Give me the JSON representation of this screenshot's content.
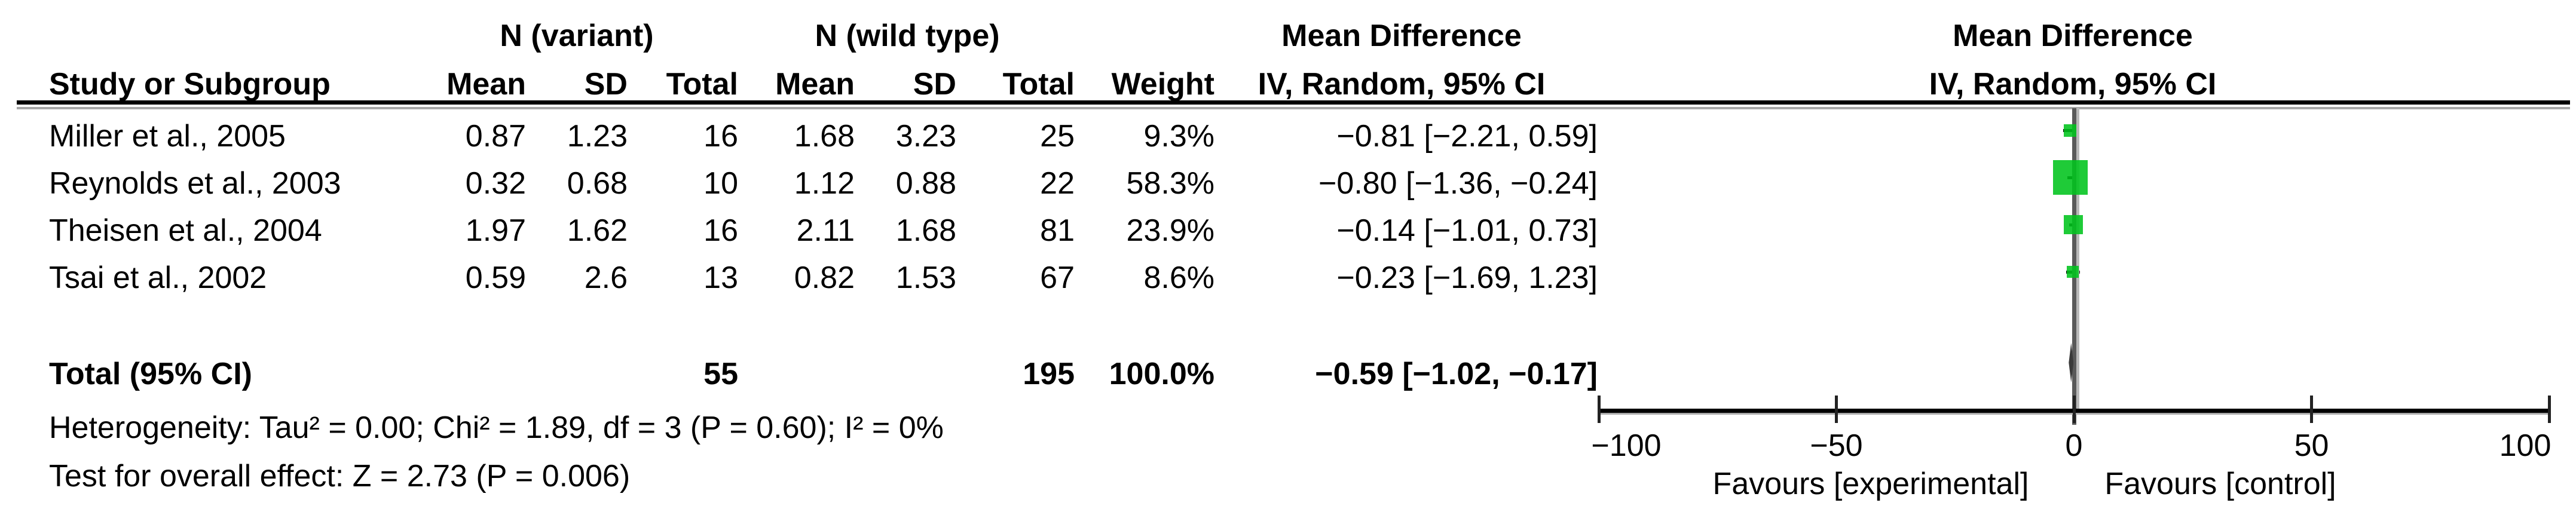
{
  "table": {
    "col_headers_top": {
      "n_variant": "N (variant)",
      "n_wild_type": "N (wild type)",
      "mean_difference_table": "Mean Difference",
      "mean_difference_plot": "Mean Difference"
    },
    "col_headers_sub": {
      "study": "Study or Subgroup",
      "mean_v": "Mean",
      "sd_v": "SD",
      "total_v": "Total",
      "mean_w": "Mean",
      "sd_w": "SD",
      "total_w": "Total",
      "weight": "Weight",
      "ci_table": "IV, Random, 95% CI",
      "ci_plot": "IV, Random, 95% CI"
    },
    "rows": [
      {
        "study": "Miller et al., 2005",
        "mean_v": "0.87",
        "sd_v": "1.23",
        "total_v": "16",
        "mean_w": "1.68",
        "sd_w": "3.23",
        "total_w": "25",
        "weight": "9.3%",
        "ci": "−0.81 [−2.21, 0.59]"
      },
      {
        "study": "Reynolds et al., 2003",
        "mean_v": "0.32",
        "sd_v": "0.68",
        "total_v": "10",
        "mean_w": "1.12",
        "sd_w": "0.88",
        "total_w": "22",
        "weight": "58.3%",
        "ci": "−0.80 [−1.36, −0.24]"
      },
      {
        "study": "Theisen et al., 2004",
        "mean_v": "1.97",
        "sd_v": "1.62",
        "total_v": "16",
        "mean_w": "2.11",
        "sd_w": "1.68",
        "total_w": "81",
        "weight": "23.9%",
        "ci": "−0.14 [−1.01, 0.73]"
      },
      {
        "study": "Tsai et al., 2002",
        "mean_v": "0.59",
        "sd_v": "2.6",
        "total_v": "13",
        "mean_w": "0.82",
        "sd_w": "1.53",
        "total_w": "67",
        "weight": "8.6%",
        "ci": "−0.23 [−1.69, 1.23]"
      }
    ],
    "total_row": {
      "label": "Total (95% CI)",
      "total_v": "55",
      "total_w": "195",
      "weight": "100.0%",
      "ci": "−0.59 [−1.02, −0.17]"
    },
    "footer": {
      "heterogeneity": "Heterogeneity: Tau² = 0.00; Chi² = 1.89, df = 3 (P = 0.60); I² = 0%",
      "overall_effect": "Test for overall effect: Z = 2.73 (P = 0.006)"
    }
  },
  "chart_data": {
    "type": "scatter",
    "subtype": "forest-plot-mean-difference",
    "title": "Mean Difference",
    "method_label": "IV, Random, 95% CI",
    "x_axis": {
      "min": -100,
      "max": 100,
      "ticks": [
        -100,
        -50,
        0,
        50,
        100
      ],
      "tick_labels": [
        "−100",
        "−50",
        "0",
        "50",
        "100"
      ],
      "zero_reference_line": 0
    },
    "axis_note_left": "Favours [experimental]",
    "axis_note_right": "Favours [control]",
    "studies": [
      {
        "name": "Miller et al., 2005",
        "mean_difference": -0.81,
        "ci_lower": -2.21,
        "ci_upper": 0.59,
        "weight_pct": 9.3
      },
      {
        "name": "Reynolds et al., 2003",
        "mean_difference": -0.8,
        "ci_lower": -1.36,
        "ci_upper": -0.24,
        "weight_pct": 58.3
      },
      {
        "name": "Theisen et al., 2004",
        "mean_difference": -0.14,
        "ci_lower": -1.01,
        "ci_upper": 0.73,
        "weight_pct": 23.9
      },
      {
        "name": "Tsai et al., 2002",
        "mean_difference": -0.23,
        "ci_lower": -1.69,
        "ci_upper": 1.23,
        "weight_pct": 8.6
      }
    ],
    "total": {
      "label": "Total (95% CI)",
      "mean_difference": -0.59,
      "ci_lower": -1.02,
      "ci_upper": -0.17,
      "weight_pct": 100.0
    },
    "colors": {
      "square": "#00c41c",
      "diamond": "#3a3a3a",
      "zero_line": "#595959",
      "zero_line_shadow": "#b8b8b8",
      "axis": "#000000",
      "axis_shadow": "#aaaaaa"
    }
  }
}
